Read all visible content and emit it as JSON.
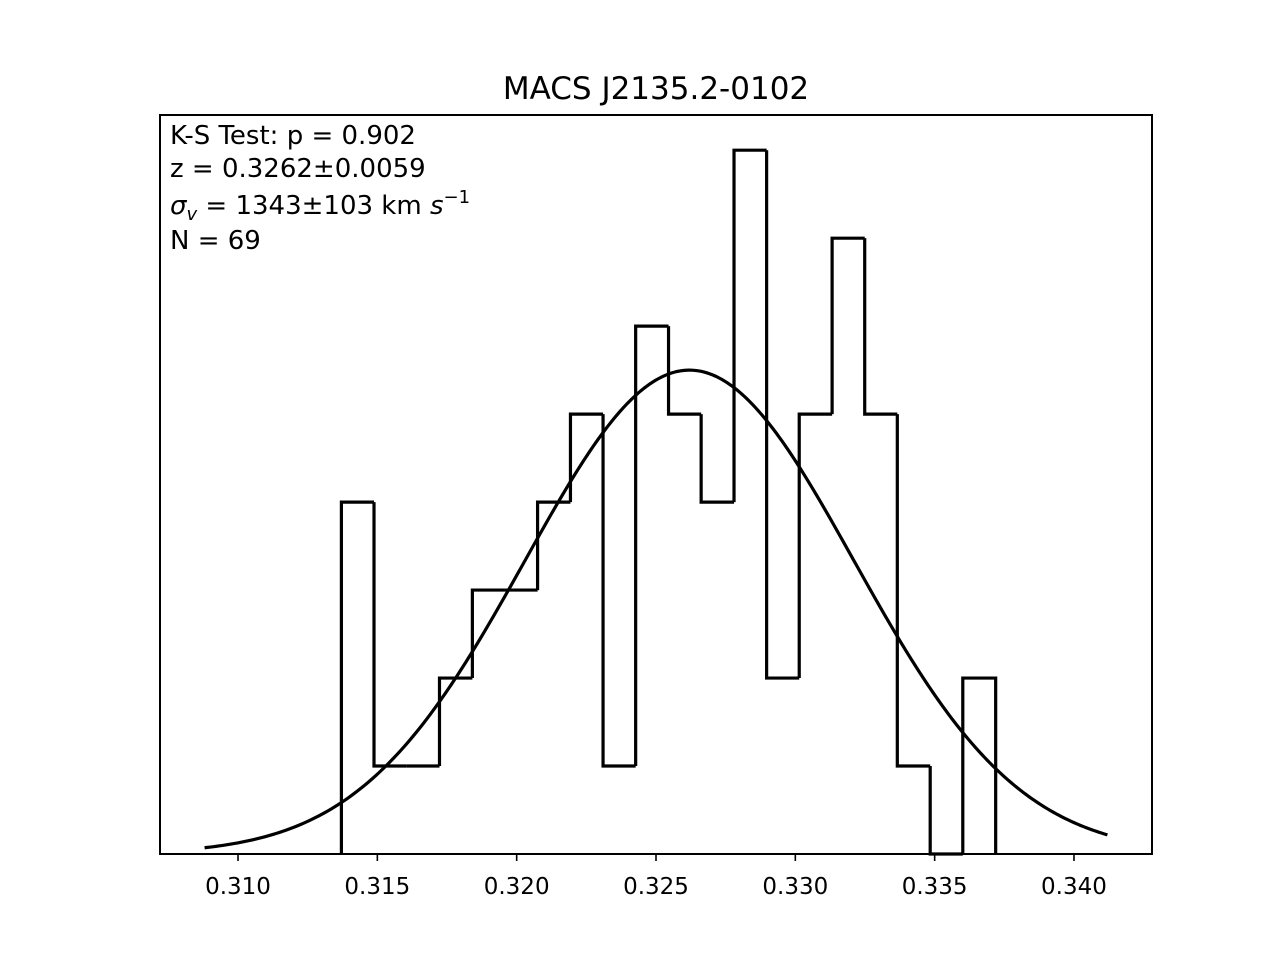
{
  "chart_data": {
    "type": "histogram",
    "title": "MACS J2135.2-0102",
    "xlabel": "",
    "ylabel": "",
    "xlim": [
      0.3072,
      0.3428
    ],
    "ylim": [
      0,
      8.4
    ],
    "xticks": [
      0.31,
      0.315,
      0.32,
      0.325,
      0.33,
      0.335,
      0.34
    ],
    "xtick_labels": [
      "0.310",
      "0.315",
      "0.320",
      "0.325",
      "0.330",
      "0.335",
      "0.340"
    ],
    "grid": false,
    "bins": [
      {
        "x0": 0.31371,
        "x1": 0.31488,
        "count": 4
      },
      {
        "x0": 0.31488,
        "x1": 0.31606,
        "count": 1
      },
      {
        "x0": 0.31606,
        "x1": 0.31723,
        "count": 1
      },
      {
        "x0": 0.31723,
        "x1": 0.31841,
        "count": 2
      },
      {
        "x0": 0.31841,
        "x1": 0.31958,
        "count": 3
      },
      {
        "x0": 0.31958,
        "x1": 0.32075,
        "count": 3
      },
      {
        "x0": 0.32075,
        "x1": 0.32193,
        "count": 4
      },
      {
        "x0": 0.32193,
        "x1": 0.3231,
        "count": 5
      },
      {
        "x0": 0.3231,
        "x1": 0.32427,
        "count": 1
      },
      {
        "x0": 0.32427,
        "x1": 0.32545,
        "count": 6
      },
      {
        "x0": 0.32545,
        "x1": 0.32662,
        "count": 5
      },
      {
        "x0": 0.32662,
        "x1": 0.3278,
        "count": 4
      },
      {
        "x0": 0.3278,
        "x1": 0.32897,
        "count": 8
      },
      {
        "x0": 0.32897,
        "x1": 0.33014,
        "count": 2
      },
      {
        "x0": 0.33014,
        "x1": 0.33132,
        "count": 5
      },
      {
        "x0": 0.33132,
        "x1": 0.33249,
        "count": 7
      },
      {
        "x0": 0.33249,
        "x1": 0.33366,
        "count": 5
      },
      {
        "x0": 0.33366,
        "x1": 0.33484,
        "count": 1
      },
      {
        "x0": 0.33484,
        "x1": 0.33601,
        "count": 0
      },
      {
        "x0": 0.33601,
        "x1": 0.33719,
        "count": 2
      }
    ],
    "gaussian_fit": {
      "mean": 0.3262,
      "sigma": 0.0059,
      "peak": 5.5,
      "x_range": [
        0.3088,
        0.3412
      ]
    },
    "annotations": {
      "ks_test": "K-S Test: p = 0.902",
      "redshift": "z = 0.3262±0.0059",
      "sigma_symbol": "σ",
      "sigma_sub": "v",
      "sigma_value": " = 1343±103 km ",
      "sigma_unit": "s",
      "sigma_exp": "−1",
      "count": "N = 69"
    }
  }
}
